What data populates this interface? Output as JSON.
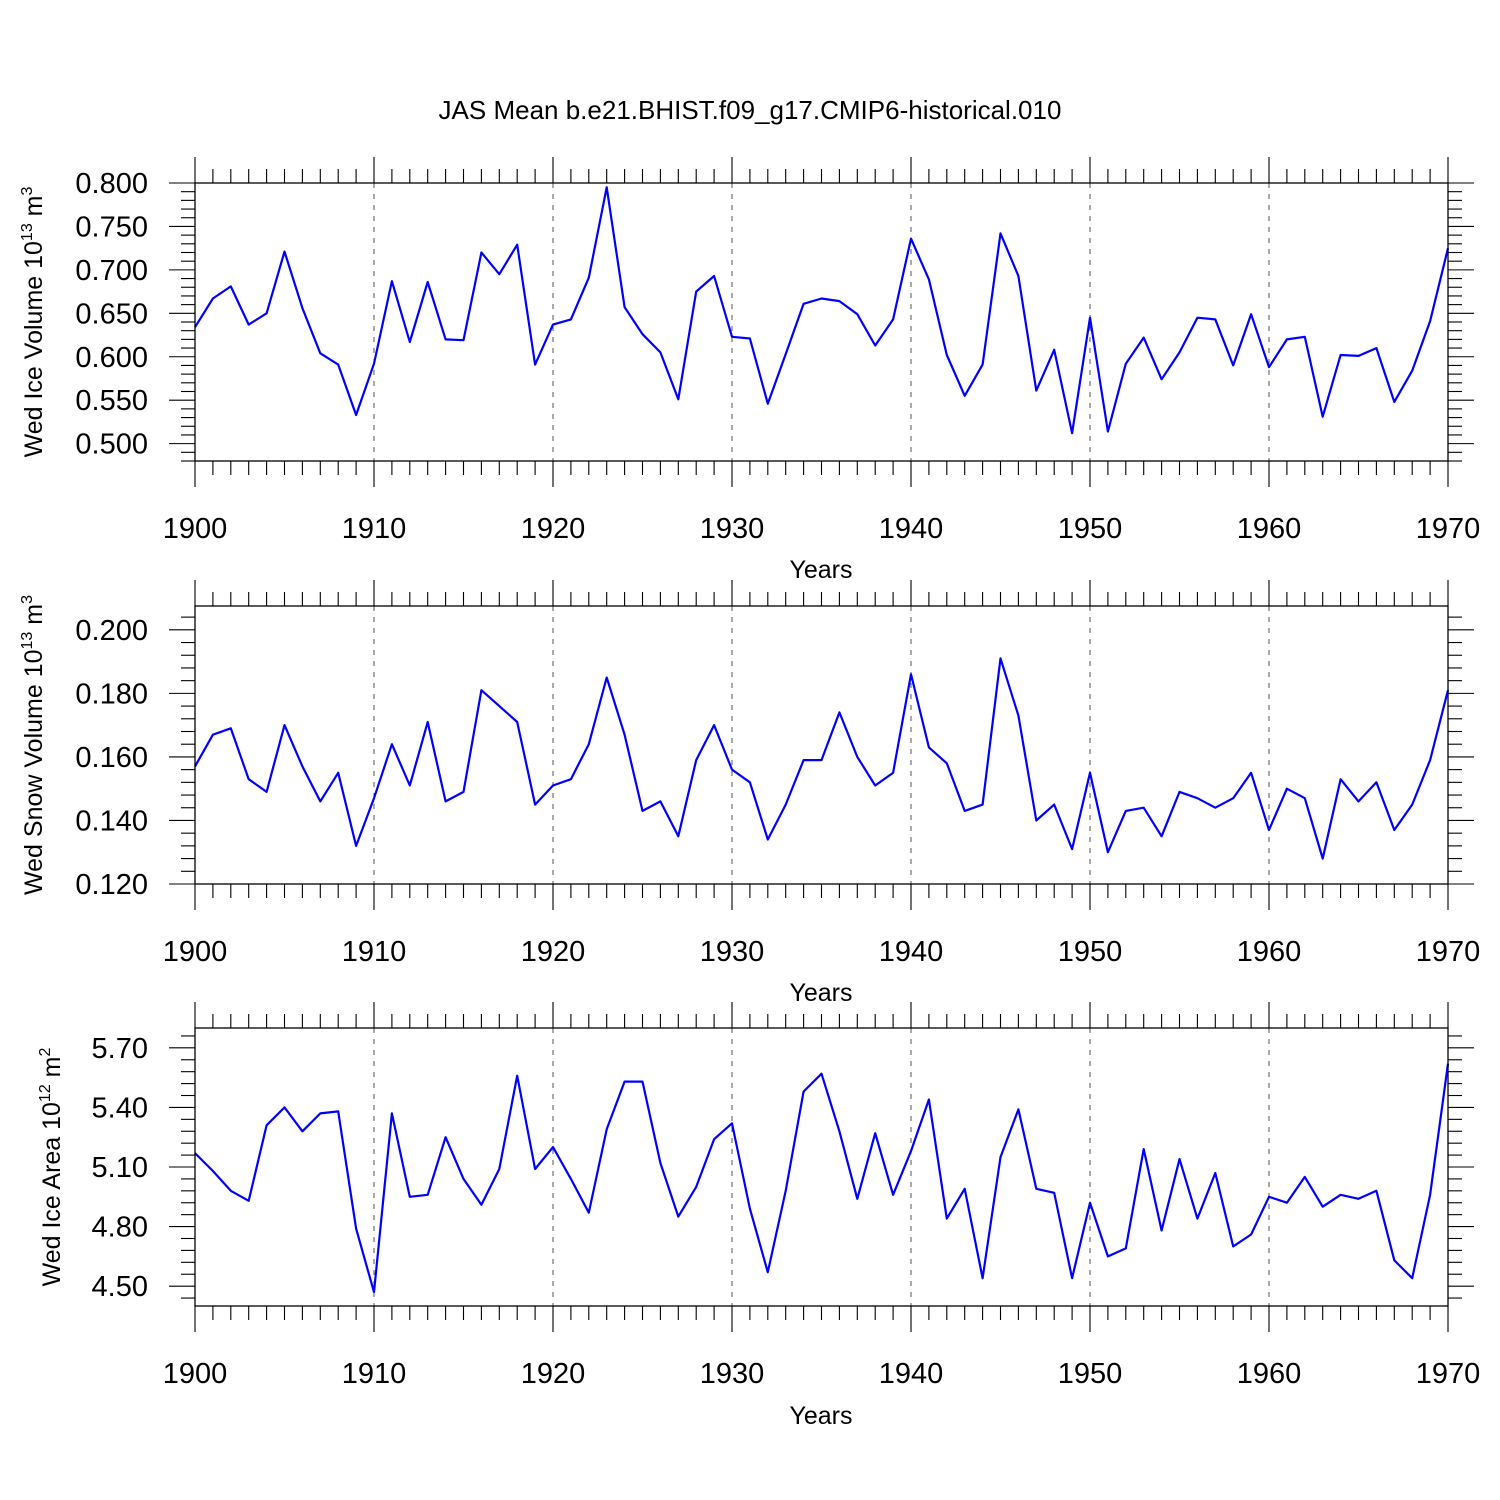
{
  "title": "JAS Mean b.e21.BHIST.f09_g17.CMIP6-historical.010",
  "series_color": "#0000ff",
  "chart_data": [
    {
      "type": "line",
      "ylabel_main": "Wed Ice Volume 10",
      "ylabel_exp": "13",
      "ylabel_unit": " m",
      "ylabel_unit_exp": "3",
      "xlabel": "Years",
      "xlim": [
        1900,
        1970
      ],
      "ylim": [
        0.48,
        0.8
      ],
      "yticks": [
        0.5,
        0.55,
        0.6,
        0.65,
        0.7,
        0.75,
        0.8
      ],
      "ytick_labels": [
        "0.500",
        "0.550",
        "0.600",
        "0.650",
        "0.700",
        "0.750",
        "0.800"
      ],
      "xticks": [
        1900,
        1910,
        1920,
        1930,
        1940,
        1950,
        1960,
        1970
      ],
      "xtick_labels": [
        "1900",
        "1910",
        "1920",
        "1930",
        "1940",
        "1950",
        "1960",
        "1970"
      ],
      "x_start": 1900,
      "values": [
        0.634,
        0.667,
        0.681,
        0.637,
        0.65,
        0.721,
        0.656,
        0.604,
        0.591,
        0.533,
        0.592,
        0.687,
        0.617,
        0.686,
        0.62,
        0.619,
        0.72,
        0.695,
        0.729,
        0.591,
        0.637,
        0.643,
        0.691,
        0.795,
        0.657,
        0.626,
        0.605,
        0.551,
        0.675,
        0.693,
        0.623,
        0.621,
        0.546,
        0.603,
        0.661,
        0.667,
        0.664,
        0.649,
        0.613,
        0.643,
        0.736,
        0.689,
        0.602,
        0.555,
        0.591,
        0.742,
        0.693,
        0.561,
        0.608,
        0.512,
        0.645,
        0.514,
        0.592,
        0.622,
        0.574,
        0.605,
        0.645,
        0.643,
        0.59,
        0.649,
        0.588,
        0.62,
        0.623,
        0.531,
        0.602,
        0.601,
        0.61,
        0.548,
        0.584,
        0.641,
        0.725
      ]
    },
    {
      "type": "line",
      "ylabel_main": "Wed Snow Volume 10",
      "ylabel_exp": "13",
      "ylabel_unit": " m",
      "ylabel_unit_exp": "3",
      "xlabel": "Years",
      "xlim": [
        1900,
        1970
      ],
      "ylim": [
        0.12,
        0.2075
      ],
      "yticks": [
        0.12,
        0.14,
        0.16,
        0.18,
        0.2
      ],
      "ytick_labels": [
        "0.120",
        "0.140",
        "0.160",
        "0.180",
        "0.200"
      ],
      "xticks": [
        1900,
        1910,
        1920,
        1930,
        1940,
        1950,
        1960,
        1970
      ],
      "xtick_labels": [
        "1900",
        "1910",
        "1920",
        "1930",
        "1940",
        "1950",
        "1960",
        "1970"
      ],
      "x_start": 1900,
      "values": [
        0.157,
        0.167,
        0.169,
        0.153,
        0.149,
        0.17,
        0.157,
        0.146,
        0.155,
        0.132,
        0.147,
        0.164,
        0.151,
        0.171,
        0.146,
        0.149,
        0.181,
        0.176,
        0.171,
        0.145,
        0.151,
        0.153,
        0.164,
        0.185,
        0.167,
        0.143,
        0.146,
        0.135,
        0.159,
        0.17,
        0.156,
        0.152,
        0.134,
        0.145,
        0.159,
        0.159,
        0.174,
        0.16,
        0.151,
        0.155,
        0.186,
        0.163,
        0.158,
        0.143,
        0.145,
        0.191,
        0.173,
        0.14,
        0.145,
        0.131,
        0.155,
        0.13,
        0.143,
        0.144,
        0.135,
        0.149,
        0.147,
        0.144,
        0.147,
        0.155,
        0.137,
        0.15,
        0.147,
        0.128,
        0.153,
        0.146,
        0.152,
        0.137,
        0.145,
        0.159,
        0.181
      ]
    },
    {
      "type": "line",
      "ylabel_main": "Wed Ice Area 10",
      "ylabel_exp": "12",
      "ylabel_unit": " m",
      "ylabel_unit_exp": "2",
      "xlabel": "Years",
      "xlim": [
        1900,
        1970
      ],
      "ylim": [
        4.4,
        5.8
      ],
      "yticks": [
        4.5,
        4.8,
        5.1,
        5.4,
        5.7
      ],
      "ytick_labels": [
        "4.50",
        "4.80",
        "5.10",
        "5.40",
        "5.70"
      ],
      "xticks": [
        1900,
        1910,
        1920,
        1930,
        1940,
        1950,
        1960,
        1970
      ],
      "xtick_labels": [
        "1900",
        "1910",
        "1920",
        "1930",
        "1940",
        "1950",
        "1960",
        "1970"
      ],
      "x_start": 1900,
      "values": [
        5.17,
        5.08,
        4.98,
        4.93,
        5.31,
        5.4,
        5.28,
        5.37,
        5.38,
        4.79,
        4.47,
        5.37,
        4.95,
        4.96,
        5.25,
        5.04,
        4.91,
        5.09,
        5.56,
        5.09,
        5.2,
        5.04,
        4.87,
        5.29,
        5.53,
        5.53,
        5.12,
        4.85,
        5.0,
        5.24,
        5.32,
        4.89,
        4.57,
        4.98,
        5.48,
        5.57,
        5.28,
        4.94,
        5.27,
        4.96,
        5.18,
        5.44,
        4.84,
        4.99,
        4.54,
        5.15,
        5.39,
        4.99,
        4.97,
        4.54,
        4.92,
        4.65,
        4.69,
        5.19,
        4.78,
        5.14,
        4.84,
        5.07,
        4.7,
        4.76,
        4.95,
        4.92,
        5.05,
        4.9,
        4.96,
        4.94,
        4.98,
        4.63,
        4.54,
        4.96,
        5.62
      ]
    }
  ]
}
